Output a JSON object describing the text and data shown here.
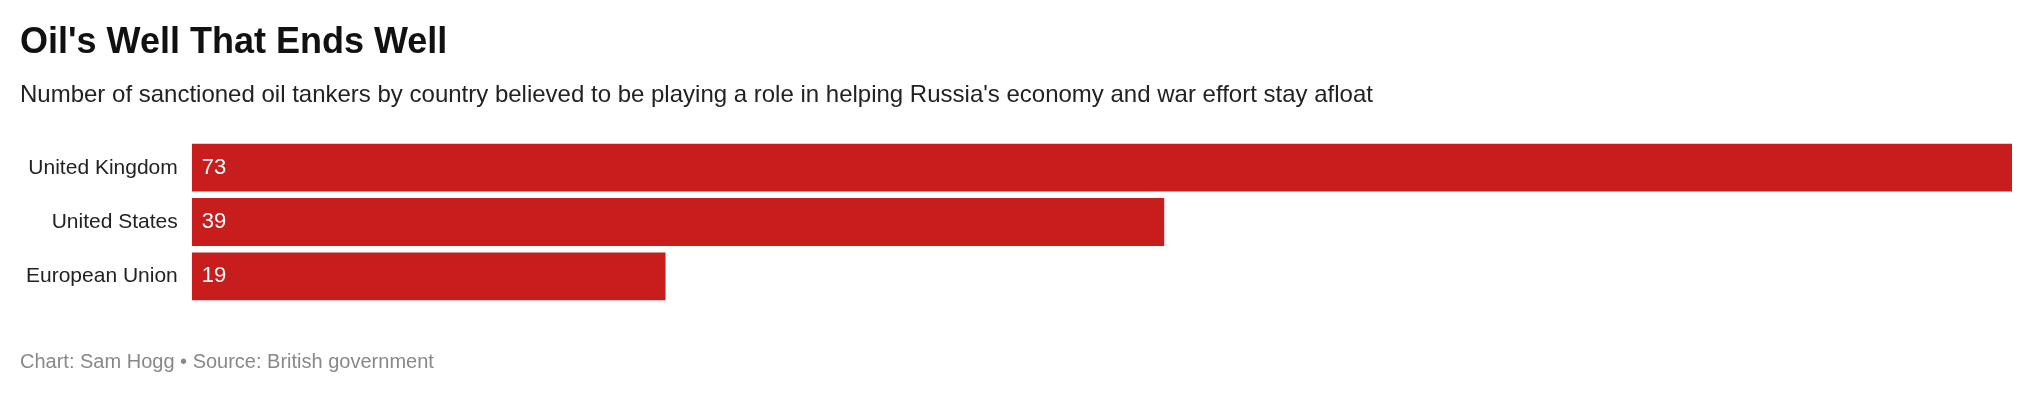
{
  "chart_data": {
    "type": "bar",
    "orientation": "horizontal",
    "title": "Oil's Well That Ends Well",
    "subtitle": "Number of sanctioned oil tankers by country believed to be playing a role in helping Russia's economy and war effort stay afloat",
    "categories": [
      "United Kingdom",
      "United States",
      "European Union"
    ],
    "values": [
      73,
      39,
      19
    ],
    "color": "#c71d1d",
    "data_labels": true,
    "legend": false,
    "annotations": [
      "Chart: Sam Hogg • Source: British government"
    ]
  }
}
